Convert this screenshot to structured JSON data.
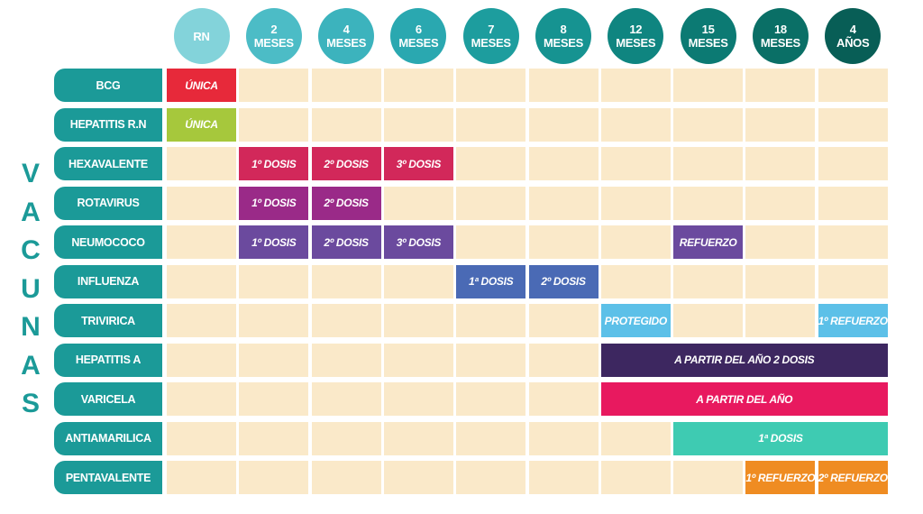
{
  "side_title_letters": [
    "V",
    "A",
    "C",
    "U",
    "N",
    "A",
    "S"
  ],
  "age_columns": [
    {
      "label": "RN",
      "color": "#83d3da"
    },
    {
      "label": "2\nMESES",
      "color": "#4cbcc6"
    },
    {
      "label": "4\nMESES",
      "color": "#3cb3bd"
    },
    {
      "label": "6\nMESES",
      "color": "#2aa8b0"
    },
    {
      "label": "7\nMESES",
      "color": "#1d9d9e"
    },
    {
      "label": "8\nMESES",
      "color": "#169391"
    },
    {
      "label": "12\nMESES",
      "color": "#0f8580"
    },
    {
      "label": "15\nMESES",
      "color": "#0c7a73"
    },
    {
      "label": "18\nMESES",
      "color": "#0a6f66"
    },
    {
      "label": "4\nAÑOS",
      "color": "#085e56"
    }
  ],
  "vaccines": [
    {
      "name": "BCG",
      "doses": [
        {
          "col": 0,
          "span": 1,
          "text": "ÚNICA",
          "color": "#e7293a"
        }
      ]
    },
    {
      "name": "HEPATITIS R.N",
      "doses": [
        {
          "col": 0,
          "span": 1,
          "text": "ÚNICA",
          "color": "#a6c83c"
        }
      ]
    },
    {
      "name": "HEXAVALENTE",
      "doses": [
        {
          "col": 1,
          "span": 1,
          "text": "1º DOSIS",
          "color": "#d2285a"
        },
        {
          "col": 2,
          "span": 1,
          "text": "2º DOSIS",
          "color": "#d2285a"
        },
        {
          "col": 3,
          "span": 1,
          "text": "3º DOSIS",
          "color": "#d2285a"
        }
      ]
    },
    {
      "name": "ROTAVIRUS",
      "doses": [
        {
          "col": 1,
          "span": 1,
          "text": "1º DOSIS",
          "color": "#9a2a88"
        },
        {
          "col": 2,
          "span": 1,
          "text": "2º DOSIS",
          "color": "#9a2a88"
        }
      ]
    },
    {
      "name": "NEUMOCOCO",
      "doses": [
        {
          "col": 1,
          "span": 1,
          "text": "1º DOSIS",
          "color": "#6b4a9e"
        },
        {
          "col": 2,
          "span": 1,
          "text": "2º DOSIS",
          "color": "#6b4a9e"
        },
        {
          "col": 3,
          "span": 1,
          "text": "3º DOSIS",
          "color": "#6b4a9e"
        },
        {
          "col": 7,
          "span": 1,
          "text": "REFUERZO",
          "color": "#6b4a9e"
        }
      ]
    },
    {
      "name": "INFLUENZA",
      "doses": [
        {
          "col": 4,
          "span": 1,
          "text": "1ª DOSIS",
          "color": "#4a6ab5"
        },
        {
          "col": 5,
          "span": 1,
          "text": "2º DOSIS",
          "color": "#4a6ab5"
        }
      ]
    },
    {
      "name": "TRIVIRICA",
      "doses": [
        {
          "col": 6,
          "span": 1,
          "text": "PROTEGIDO",
          "color": "#5cc0e8"
        },
        {
          "col": 9,
          "span": 1,
          "text": "1º REFUERZO",
          "color": "#5cc0e8"
        }
      ]
    },
    {
      "name": "HEPATITIS A",
      "doses": [
        {
          "col": 6,
          "span": 4,
          "text": "A PARTIR DEL AÑO 2 DOSIS",
          "color": "#3d2760"
        }
      ]
    },
    {
      "name": "VARICELA",
      "doses": [
        {
          "col": 6,
          "span": 4,
          "text": "A PARTIR DEL AÑO",
          "color": "#e8195f"
        }
      ]
    },
    {
      "name": "ANTIAMARILICA",
      "doses": [
        {
          "col": 7,
          "span": 3,
          "text": "1ª DOSIS",
          "color": "#3ecbb2"
        }
      ]
    },
    {
      "name": "PENTAVALENTE",
      "doses": [
        {
          "col": 8,
          "span": 1,
          "text": "1º REFUERZO",
          "color": "#ef8c22"
        },
        {
          "col": 9,
          "span": 1,
          "text": "2º REFUERZO",
          "color": "#ef8c22"
        }
      ]
    }
  ]
}
